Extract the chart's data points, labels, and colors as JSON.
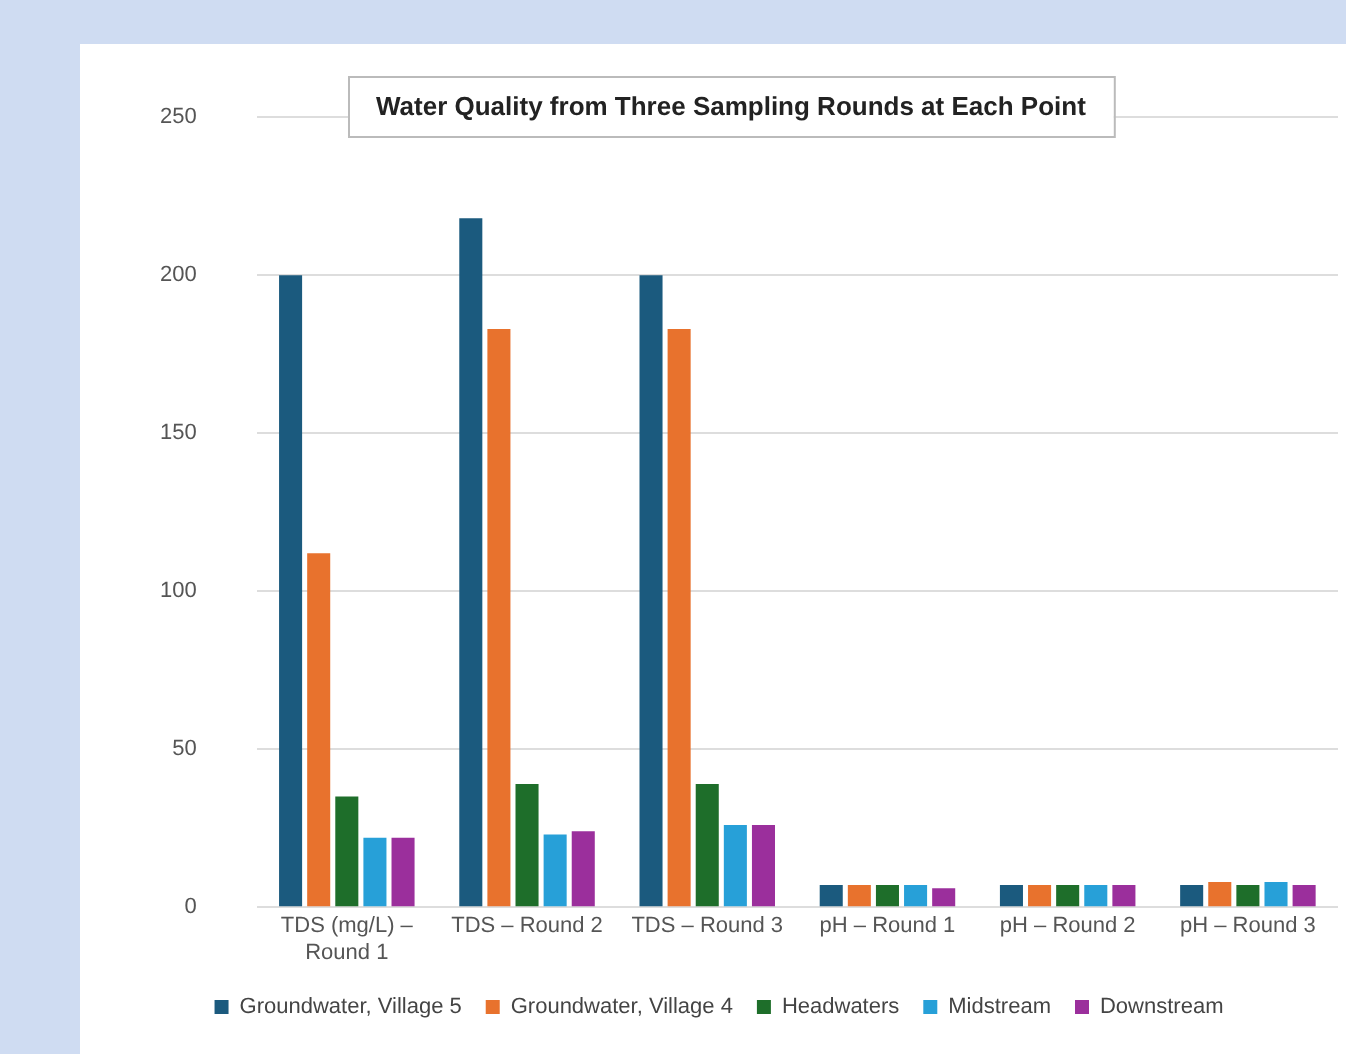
{
  "chart_data": {
    "type": "bar",
    "title": "Water Quality from Three Sampling Rounds at Each Point",
    "categories": [
      "TDS (mg/L) – Round 1",
      "TDS – Round 2",
      "TDS – Round 3",
      "pH – Round 1",
      "pH – Round 2",
      "pH – Round 3"
    ],
    "series": [
      {
        "name": "Groundwater, Village 5",
        "color": "#1b5a7e",
        "values": [
          200,
          218,
          200,
          7,
          7,
          7
        ]
      },
      {
        "name": "Groundwater, Village 4",
        "color": "#e8722d",
        "values": [
          112,
          183,
          183,
          7,
          7,
          8
        ]
      },
      {
        "name": "Headwaters",
        "color": "#1e6e2a",
        "values": [
          35,
          39,
          39,
          7,
          7,
          7
        ]
      },
      {
        "name": "Midstream",
        "color": "#27a0d8",
        "values": [
          22,
          23,
          26,
          7,
          7,
          8
        ]
      },
      {
        "name": "Downstream",
        "color": "#9b2f9c",
        "values": [
          22,
          24,
          26,
          6,
          7,
          7
        ]
      }
    ],
    "ylim": [
      0,
      250
    ],
    "yticks": [
      0,
      50,
      100,
      150,
      200,
      250
    ],
    "grid": "y",
    "legend": "bottom"
  }
}
